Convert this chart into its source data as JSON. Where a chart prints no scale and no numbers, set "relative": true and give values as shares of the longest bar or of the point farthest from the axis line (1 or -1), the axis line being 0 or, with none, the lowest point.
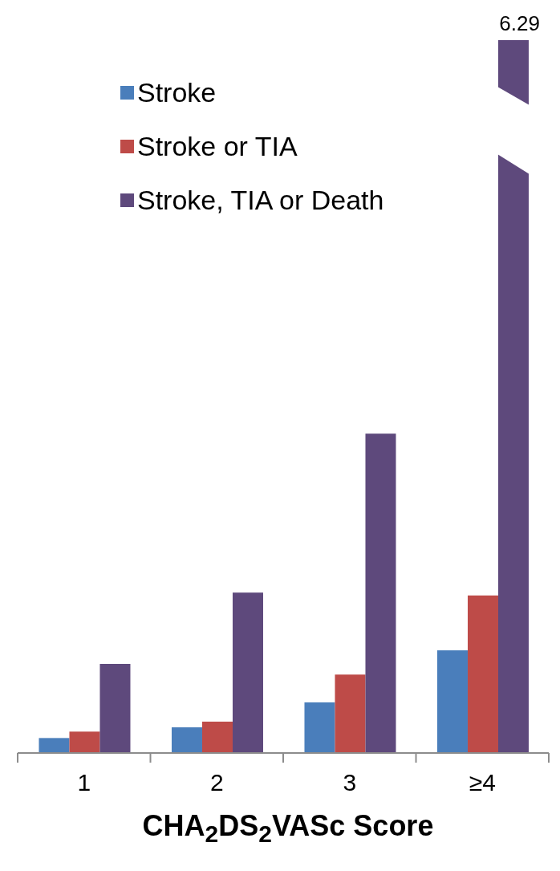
{
  "chart_data": {
    "type": "bar",
    "relative": true,
    "xlabel": "CHA$_{2}$DS$_{2}$VASc Score",
    "categories": [
      "1",
      "2",
      "3",
      "≥4"
    ],
    "legend": "top left",
    "annotations": [
      "6.29"
    ],
    "series": [
      {
        "name": "Stroke",
        "color": "#4a7ebb",
        "values": [
          0.021,
          0.036,
          0.071,
          0.144
        ]
      },
      {
        "name": "Stroke or TIA",
        "color": "#be4b48",
        "values": [
          0.03,
          0.044,
          0.11,
          0.221
        ]
      },
      {
        "name": "Stroke, TIA or Death",
        "color": "#5e497c",
        "values": [
          0.125,
          0.225,
          0.448,
          1
        ]
      }
    ]
  }
}
